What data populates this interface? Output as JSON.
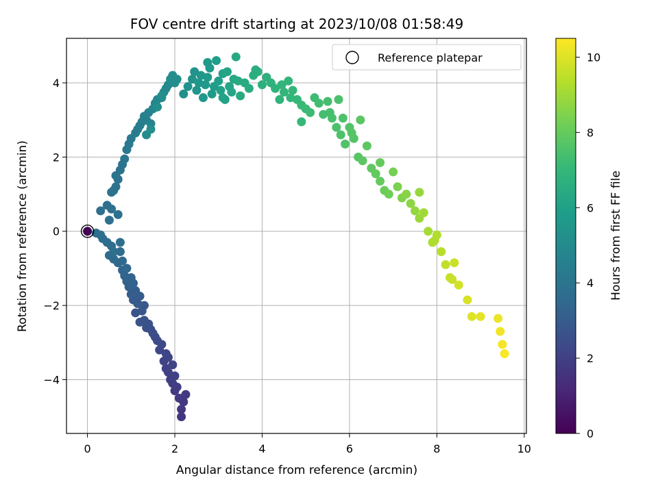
{
  "chart_data": {
    "type": "scatter",
    "title": "FOV centre drift starting at 2023/10/08 01:58:49",
    "xlabel": "Angular distance from reference (arcmin)",
    "ylabel": "Rotation from reference (arcmin)",
    "xlim": [
      -0.48,
      10.05
    ],
    "ylim": [
      -5.45,
      5.2
    ],
    "xticks": [
      0,
      2,
      4,
      6,
      8,
      10
    ],
    "yticks": [
      -4,
      -2,
      0,
      2,
      4
    ],
    "grid": true,
    "legend": {
      "position": "top-right",
      "entries": [
        "Reference platepar"
      ]
    },
    "reference_point": {
      "x": 0,
      "y": 0
    },
    "colorbar": {
      "label": "Hours from first FF file",
      "colormap": "viridis",
      "range": [
        0,
        10.5
      ],
      "ticks": [
        0,
        2,
        4,
        6,
        8,
        10
      ]
    },
    "points": [
      [
        0.0,
        0.0,
        0.0
      ],
      [
        2.15,
        -5.0,
        1.6
      ],
      [
        2.15,
        -4.8,
        1.65
      ],
      [
        2.2,
        -4.6,
        1.7
      ],
      [
        2.1,
        -4.5,
        1.75
      ],
      [
        2.25,
        -4.4,
        1.8
      ],
      [
        2.0,
        -4.3,
        1.85
      ],
      [
        1.95,
        -4.1,
        1.9
      ],
      [
        2.05,
        -4.2,
        1.9
      ],
      [
        1.9,
        -4.0,
        1.95
      ],
      [
        2.0,
        -3.9,
        2.0
      ],
      [
        1.85,
        -3.8,
        2.0
      ],
      [
        1.8,
        -3.7,
        2.05
      ],
      [
        1.95,
        -3.6,
        2.1
      ],
      [
        1.75,
        -3.5,
        2.1
      ],
      [
        1.85,
        -3.4,
        2.15
      ],
      [
        1.8,
        -3.3,
        2.2
      ],
      [
        1.65,
        -3.2,
        2.25
      ],
      [
        1.7,
        -3.05,
        2.3
      ],
      [
        1.6,
        -2.95,
        2.35
      ],
      [
        1.55,
        -2.85,
        2.4
      ],
      [
        1.5,
        -2.75,
        2.45
      ],
      [
        1.45,
        -2.65,
        2.5
      ],
      [
        1.35,
        -2.6,
        2.55
      ],
      [
        1.4,
        -2.5,
        2.6
      ],
      [
        1.3,
        -2.4,
        2.65
      ],
      [
        1.2,
        -2.45,
        2.7
      ],
      [
        1.1,
        -2.2,
        2.75
      ],
      [
        1.25,
        -2.15,
        2.8
      ],
      [
        1.3,
        -2.0,
        2.85
      ],
      [
        1.15,
        -1.95,
        2.9
      ],
      [
        1.05,
        -1.85,
        2.95
      ],
      [
        1.2,
        -1.75,
        3.0
      ],
      [
        1.0,
        -1.7,
        3.05
      ],
      [
        1.1,
        -1.6,
        3.1
      ],
      [
        0.95,
        -1.5,
        3.15
      ],
      [
        1.05,
        -1.4,
        3.2
      ],
      [
        0.9,
        -1.35,
        3.25
      ],
      [
        1.0,
        -1.25,
        3.3
      ],
      [
        0.85,
        -1.2,
        3.35
      ],
      [
        0.8,
        -1.05,
        3.4
      ],
      [
        0.9,
        -1.0,
        3.45
      ],
      [
        0.7,
        -0.85,
        3.5
      ],
      [
        0.8,
        -0.8,
        3.55
      ],
      [
        0.6,
        -0.75,
        3.6
      ],
      [
        0.5,
        -0.65,
        3.62
      ],
      [
        0.75,
        -0.55,
        3.64
      ],
      [
        0.55,
        -0.4,
        3.66
      ],
      [
        0.45,
        -0.3,
        3.68
      ],
      [
        0.35,
        -0.2,
        3.7
      ],
      [
        0.3,
        -0.1,
        3.72
      ],
      [
        0.2,
        -0.05,
        3.74
      ],
      [
        0.75,
        -0.3,
        3.76
      ],
      [
        0.6,
        -0.55,
        3.78
      ],
      [
        0.5,
        0.3,
        3.8
      ],
      [
        0.3,
        0.55,
        3.82
      ],
      [
        0.45,
        0.7,
        3.84
      ],
      [
        0.55,
        0.6,
        3.86
      ],
      [
        0.7,
        0.45,
        3.88
      ],
      [
        0.65,
        1.2,
        3.9
      ],
      [
        0.6,
        1.1,
        3.92
      ],
      [
        0.55,
        1.05,
        3.94
      ],
      [
        0.7,
        1.4,
        3.96
      ],
      [
        0.65,
        1.5,
        3.98
      ],
      [
        0.75,
        1.65,
        4.0
      ],
      [
        0.8,
        1.8,
        4.05
      ],
      [
        0.85,
        1.95,
        4.1
      ],
      [
        0.9,
        2.2,
        4.15
      ],
      [
        0.95,
        2.35,
        4.2
      ],
      [
        1.0,
        2.5,
        4.25
      ],
      [
        1.1,
        2.65,
        4.3
      ],
      [
        1.15,
        2.75,
        4.35
      ],
      [
        1.2,
        2.85,
        4.4
      ],
      [
        1.25,
        2.95,
        4.45
      ],
      [
        1.3,
        3.1,
        4.5
      ],
      [
        1.35,
        3.0,
        4.55
      ],
      [
        1.4,
        3.2,
        4.6
      ],
      [
        1.45,
        2.9,
        4.65
      ],
      [
        1.5,
        3.3,
        4.7
      ],
      [
        1.55,
        3.45,
        4.75
      ],
      [
        1.6,
        3.55,
        4.8
      ],
      [
        1.7,
        3.6,
        4.85
      ],
      [
        1.75,
        3.75,
        4.9
      ],
      [
        1.8,
        3.85,
        4.95
      ],
      [
        1.85,
        3.95,
        5.0
      ],
      [
        1.9,
        4.1,
        5.05
      ],
      [
        1.95,
        4.2,
        5.1
      ],
      [
        1.35,
        2.6,
        5.12
      ],
      [
        1.45,
        2.75,
        5.14
      ],
      [
        1.6,
        3.35,
        5.16
      ],
      [
        1.7,
        3.65,
        5.18
      ],
      [
        2.0,
        4.0,
        5.2
      ],
      [
        2.05,
        4.1,
        5.22
      ],
      [
        2.2,
        3.7,
        5.25
      ],
      [
        2.3,
        3.9,
        5.3
      ],
      [
        2.4,
        4.1,
        5.35
      ],
      [
        2.45,
        4.3,
        5.4
      ],
      [
        2.5,
        3.8,
        5.45
      ],
      [
        2.55,
        4.0,
        5.5
      ],
      [
        2.6,
        4.2,
        5.55
      ],
      [
        2.65,
        3.6,
        5.6
      ],
      [
        2.7,
        3.95,
        5.65
      ],
      [
        2.75,
        4.15,
        5.7
      ],
      [
        2.8,
        4.4,
        5.75
      ],
      [
        2.85,
        3.7,
        5.8
      ],
      [
        2.9,
        3.9,
        5.85
      ],
      [
        2.95,
        4.6,
        5.9
      ],
      [
        3.0,
        4.05,
        5.95
      ],
      [
        3.05,
        3.8,
        6.0
      ],
      [
        3.1,
        4.25,
        6.05
      ],
      [
        3.15,
        3.55,
        6.1
      ],
      [
        3.2,
        4.3,
        6.15
      ],
      [
        3.25,
        3.9,
        6.2
      ],
      [
        3.3,
        3.75,
        6.25
      ],
      [
        3.35,
        4.1,
        6.3
      ],
      [
        3.4,
        4.7,
        6.35
      ],
      [
        3.5,
        3.65,
        6.4
      ],
      [
        3.6,
        4.0,
        6.45
      ],
      [
        3.7,
        3.85,
        6.5
      ],
      [
        3.8,
        4.2,
        6.55
      ],
      [
        3.9,
        4.3,
        6.6
      ],
      [
        4.0,
        3.95,
        6.65
      ],
      [
        4.1,
        4.15,
        6.7
      ],
      [
        4.2,
        4.0,
        6.75
      ],
      [
        4.3,
        3.85,
        6.8
      ],
      [
        4.4,
        3.55,
        6.85
      ],
      [
        4.5,
        3.75,
        6.9
      ],
      [
        4.6,
        4.05,
        6.95
      ],
      [
        4.7,
        3.8,
        7.0
      ],
      [
        4.8,
        3.55,
        7.05
      ],
      [
        4.9,
        3.4,
        7.1
      ],
      [
        5.0,
        3.3,
        7.15
      ],
      [
        5.1,
        3.2,
        7.2
      ],
      [
        5.2,
        3.6,
        7.25
      ],
      [
        5.3,
        3.45,
        7.3
      ],
      [
        5.4,
        3.15,
        7.35
      ],
      [
        5.5,
        3.5,
        7.4
      ],
      [
        5.6,
        3.05,
        7.45
      ],
      [
        5.7,
        2.8,
        7.5
      ],
      [
        5.8,
        2.6,
        7.55
      ],
      [
        5.9,
        2.35,
        7.6
      ],
      [
        6.0,
        2.8,
        7.65
      ],
      [
        6.1,
        2.5,
        7.7
      ],
      [
        6.2,
        2.0,
        7.75
      ],
      [
        6.3,
        1.9,
        7.8
      ],
      [
        6.4,
        2.3,
        7.85
      ],
      [
        6.5,
        1.7,
        7.9
      ],
      [
        6.6,
        1.55,
        7.95
      ],
      [
        6.7,
        1.35,
        8.0
      ],
      [
        6.8,
        1.1,
        8.1
      ],
      [
        6.9,
        1.0,
        8.2
      ],
      [
        7.0,
        1.6,
        8.3
      ],
      [
        7.1,
        1.2,
        8.4
      ],
      [
        7.2,
        0.9,
        8.5
      ],
      [
        7.3,
        1.0,
        8.6
      ],
      [
        7.4,
        0.75,
        8.7
      ],
      [
        7.5,
        0.55,
        8.8
      ],
      [
        7.6,
        0.35,
        8.9
      ],
      [
        7.7,
        0.5,
        9.0
      ],
      [
        7.8,
        0.0,
        9.1
      ],
      [
        7.9,
        -0.3,
        9.2
      ],
      [
        8.0,
        -0.1,
        9.3
      ],
      [
        8.1,
        -0.55,
        9.4
      ],
      [
        8.2,
        -0.9,
        9.5
      ],
      [
        8.3,
        -1.25,
        9.6
      ],
      [
        8.4,
        -0.85,
        9.7
      ],
      [
        8.5,
        -1.45,
        9.8
      ],
      [
        8.7,
        -1.85,
        9.9
      ],
      [
        8.8,
        -2.3,
        10.0
      ],
      [
        9.0,
        -2.3,
        10.1
      ],
      [
        9.4,
        -2.35,
        10.2
      ],
      [
        9.45,
        -2.7,
        10.3
      ],
      [
        9.5,
        -3.05,
        10.35
      ],
      [
        9.55,
        -3.3,
        10.45
      ],
      [
        4.9,
        2.95,
        7.05
      ],
      [
        5.55,
        3.2,
        7.4
      ],
      [
        6.05,
        2.65,
        7.7
      ],
      [
        6.7,
        1.85,
        7.98
      ],
      [
        7.6,
        1.05,
        8.85
      ],
      [
        7.95,
        -0.25,
        9.25
      ],
      [
        8.35,
        -1.3,
        9.65
      ],
      [
        4.65,
        3.6,
        6.95
      ],
      [
        5.75,
        3.55,
        7.5
      ],
      [
        5.85,
        3.05,
        7.55
      ],
      [
        6.25,
        3.0,
        7.8
      ],
      [
        3.45,
        4.05,
        6.38
      ],
      [
        4.45,
        3.95,
        6.88
      ],
      [
        2.75,
        4.55,
        5.72
      ],
      [
        3.85,
        4.35,
        6.58
      ],
      [
        3.1,
        3.6,
        6.05
      ]
    ]
  }
}
